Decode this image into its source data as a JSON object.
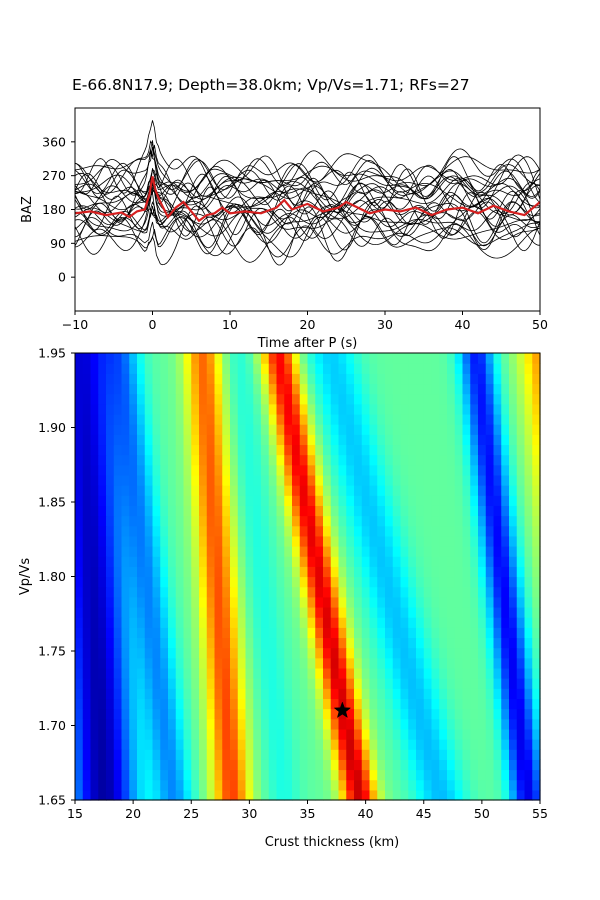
{
  "figure": {
    "title": "E-66.8N17.9; Depth=38.0km; Vp/Vs=1.71; RFs=27"
  },
  "chart_data": [
    {
      "type": "line",
      "role": "receiver-function-traces",
      "xlabel": "Time after P (s)",
      "ylabel": "BAZ",
      "xlim": [
        -10,
        50
      ],
      "ylim": [
        -90,
        450
      ],
      "xticks": [
        -10,
        0,
        10,
        20,
        30,
        40,
        50
      ],
      "xtick_labels": [
        "−10",
        "0",
        "10",
        "20",
        "30",
        "40",
        "50"
      ],
      "yticks": [
        0,
        90,
        180,
        270,
        360
      ],
      "ytick_labels": [
        "0",
        "90",
        "180",
        "270",
        "360"
      ],
      "grid": false,
      "trace_color": "#000000",
      "stack_color": "#d62020",
      "trace_count": 27,
      "trace_baz": [
        100,
        110,
        118,
        125,
        133,
        140,
        146,
        152,
        158,
        165,
        172,
        180,
        188,
        196,
        205,
        214,
        222,
        228,
        235,
        240,
        246,
        252,
        258,
        264,
        270,
        276,
        282
      ],
      "stack": {
        "baseline_baz": 180,
        "x": [
          -10,
          -8,
          -6,
          -4,
          -3,
          -2,
          -1,
          -0.4,
          0,
          0.4,
          1,
          2,
          3,
          4,
          5,
          6,
          7,
          8,
          9,
          10,
          12,
          14,
          16,
          17,
          18,
          20,
          22,
          24,
          25,
          26,
          28,
          30,
          32,
          34,
          36,
          38,
          40,
          42,
          44,
          46,
          48,
          50
        ],
        "y": [
          170,
          175,
          165,
          172,
          160,
          175,
          180,
          220,
          268,
          230,
          200,
          160,
          185,
          200,
          175,
          150,
          165,
          170,
          185,
          170,
          175,
          170,
          185,
          205,
          180,
          195,
          175,
          185,
          200,
          190,
          170,
          180,
          175,
          185,
          165,
          180,
          185,
          170,
          190,
          175,
          165,
          200
        ]
      }
    },
    {
      "type": "heatmap",
      "role": "h-kappa-stacking",
      "xlabel": "Crust thickness (km)",
      "ylabel": "Vp/Vs",
      "xlim": [
        15,
        55
      ],
      "ylim": [
        1.65,
        1.95
      ],
      "xticks": [
        15,
        20,
        25,
        30,
        35,
        40,
        45,
        50,
        55
      ],
      "yticks": [
        1.65,
        1.7,
        1.75,
        1.8,
        1.85,
        1.9,
        1.95
      ],
      "ytick_labels": [
        "1.65",
        "1.70",
        "1.75",
        "1.80",
        "1.85",
        "1.90",
        "1.95"
      ],
      "colormap": "jet",
      "grid": false,
      "ridges_H_at_min_and_max_kappa": [
        {
          "H_at_1_65": 17.5,
          "H_at_1_95": 15.5,
          "amp": -0.95,
          "width": 2.8
        },
        {
          "H_at_1_65": 23.5,
          "H_at_1_95": 19.0,
          "amp": -0.45,
          "width": 1.6
        },
        {
          "H_at_1_65": 28.5,
          "H_at_1_95": 26.0,
          "amp": 0.75,
          "width": 1.6
        },
        {
          "H_at_1_65": 33.0,
          "H_at_1_95": 29.0,
          "amp": -0.15,
          "width": 1.5
        },
        {
          "H_at_1_65": 39.5,
          "H_at_1_95": 32.5,
          "amp": 1.0,
          "width": 1.5
        },
        {
          "H_at_1_65": 46.5,
          "H_at_1_95": 37.0,
          "amp": -0.35,
          "width": 2.2
        },
        {
          "H_at_1_65": 54.0,
          "H_at_1_95": 49.5,
          "amp": -0.8,
          "width": 1.5
        },
        {
          "H_at_1_65": 60.0,
          "H_at_1_95": 55.5,
          "amp": 0.7,
          "width": 2.2
        }
      ],
      "best_fit": {
        "H": 38.0,
        "kappa": 1.71,
        "marker": "star"
      }
    }
  ]
}
